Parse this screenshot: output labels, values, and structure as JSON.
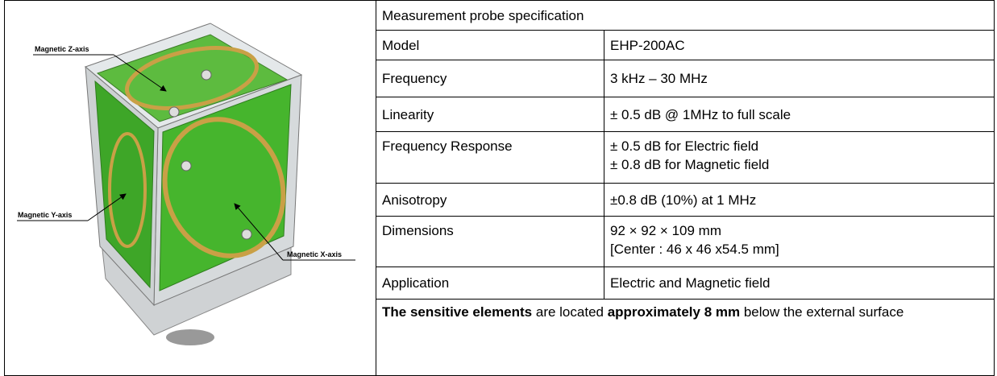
{
  "figure": {
    "labels": [
      "Magnetic Z-axis",
      "Magnetic Y-axis",
      "Magnetic X-axis"
    ]
  },
  "table": {
    "title": "Measurement probe specification",
    "rows": [
      {
        "label": "Model",
        "lines": [
          "EHP-200AC"
        ]
      },
      {
        "label": "Frequency",
        "lines": [
          "3 kHz – 30 MHz"
        ]
      },
      {
        "label": "Linearity",
        "lines": [
          "± 0.5 dB @ 1MHz to full scale"
        ]
      },
      {
        "label": "Frequency Response",
        "lines": [
          "± 0.5 dB for Electric field",
          "± 0.8 dB for Magnetic field"
        ]
      },
      {
        "label": "Anisotropy",
        "lines": [
          "±0.8 dB (10%) at 1 MHz"
        ]
      },
      {
        "label": "Dimensions",
        "lines": [
          "92 × 92 × 109 mm",
          "[Center : 46 x 46 x54.5 mm]"
        ]
      },
      {
        "label": "Application",
        "lines": [
          "Electric and Magnetic field"
        ]
      }
    ],
    "note": [
      {
        "text": "The sensitive elements",
        "bold": true
      },
      {
        "text": " are located ",
        "bold": false
      },
      {
        "text": "approximately 8 mm",
        "bold": true
      },
      {
        "text": " below the external surface",
        "bold": false
      }
    ]
  }
}
